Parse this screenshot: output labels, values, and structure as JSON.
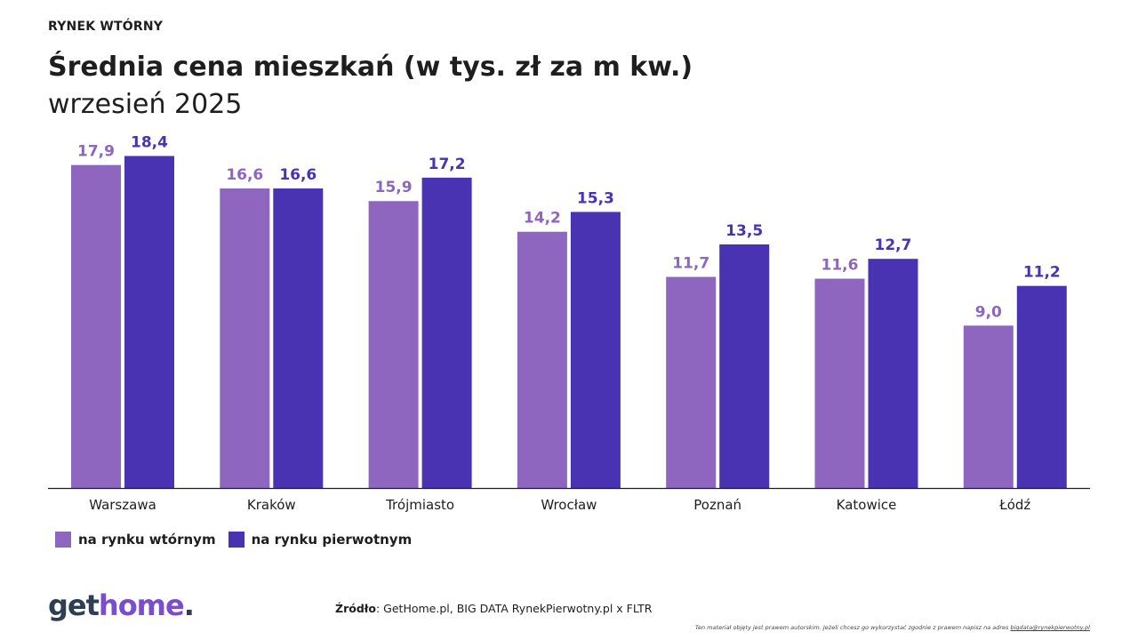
{
  "header": {
    "kicker": "RYNEK WTÓRNY",
    "title_line1": "Średnia cena mieszkań (w tys. zł za m kw.)",
    "title_line2": "wrzesień 2025"
  },
  "colors": {
    "secondary": "#8e66c0",
    "primary": "#4a33b3",
    "axis": "#1e1e1e"
  },
  "chart_data": {
    "type": "bar",
    "title": "Średnia cena mieszkań (w tys. zł za m kw.)",
    "subtitle": "wrzesień 2025",
    "categories": [
      "Warszawa",
      "Kraków",
      "Trójmiasto",
      "Wrocław",
      "Poznań",
      "Katowice",
      "Łódź"
    ],
    "series": [
      {
        "name": "na rynku wtórnym",
        "values": [
          17.9,
          16.6,
          15.9,
          14.2,
          11.7,
          11.6,
          9.0
        ],
        "labels": [
          "17,9",
          "16,6",
          "15,9",
          "14,2",
          "11,7",
          "11,6",
          "9,0"
        ],
        "color": "#8e66c0"
      },
      {
        "name": "na rynku pierwotnym",
        "values": [
          18.4,
          16.6,
          17.2,
          15.3,
          13.5,
          12.7,
          11.2
        ],
        "labels": [
          "18,4",
          "16,6",
          "17,2",
          "15,3",
          "13,5",
          "12,7",
          "11,2"
        ],
        "color": "#4a33b3"
      }
    ],
    "ylim": [
      0,
      19.5
    ],
    "grid": false,
    "legend": "bottom-left"
  },
  "footer": {
    "logo_get": "get",
    "logo_home": "home",
    "logo_dot": ".",
    "source_label": "Źródło",
    "source_text": ": GetHome.pl, BIG DATA RynekPierwotny.pl x FLTR",
    "legal_text": "Ten materiał objęty jest prawem autorskim. Jeżeli chcesz go wykorzystać zgodnie z prawem napisz na adres ",
    "legal_email": "bigdata@rynekpierwotny.pl"
  }
}
